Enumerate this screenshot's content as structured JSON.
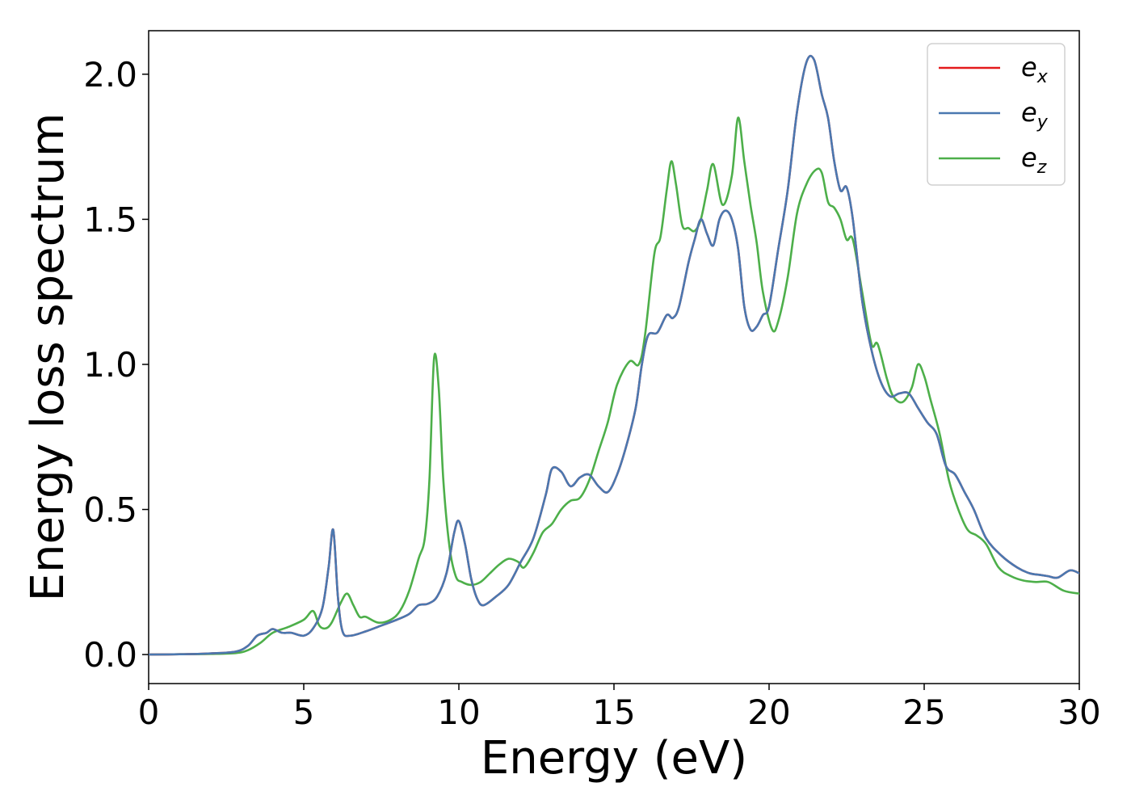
{
  "chart_data": {
    "type": "line",
    "title": "",
    "xlabel": "Energy (eV)",
    "ylabel": "Energy loss spectrum",
    "xlim": [
      0,
      30
    ],
    "ylim": [
      -0.1,
      2.15
    ],
    "xticks": [
      0,
      5,
      10,
      15,
      20,
      25,
      30
    ],
    "yticks": [
      0.0,
      0.5,
      1.0,
      1.5,
      2.0
    ],
    "xtick_labels": [
      "0",
      "5",
      "10",
      "15",
      "20",
      "25",
      "30"
    ],
    "ytick_labels": [
      "0.0",
      "0.5",
      "1.0",
      "1.5",
      "2.0"
    ],
    "grid": false,
    "legend_position": "top-right",
    "series": [
      {
        "name": "e_x",
        "label_base": "e",
        "label_sub": "x",
        "color": "#e41a1c",
        "x": [
          0,
          1,
          2,
          2.8,
          3.2,
          3.5,
          3.8,
          4.0,
          4.3,
          4.6,
          5.0,
          5.3,
          5.6,
          5.8,
          5.95,
          6.1,
          6.25,
          6.5,
          7.0,
          7.5,
          8.0,
          8.4,
          8.7,
          9.0,
          9.3,
          9.6,
          9.85,
          10.0,
          10.2,
          10.4,
          10.6,
          10.8,
          11.2,
          11.6,
          12.0,
          12.4,
          12.8,
          13.0,
          13.3,
          13.6,
          13.9,
          14.2,
          14.5,
          14.8,
          15.1,
          15.4,
          15.7,
          15.9,
          16.1,
          16.4,
          16.7,
          16.9,
          17.1,
          17.4,
          17.6,
          17.8,
          18.0,
          18.2,
          18.4,
          18.6,
          18.8,
          19.0,
          19.2,
          19.4,
          19.6,
          19.8,
          20.0,
          20.3,
          20.6,
          20.9,
          21.2,
          21.45,
          21.7,
          21.9,
          22.1,
          22.3,
          22.5,
          22.7,
          23.0,
          23.3,
          23.6,
          23.9,
          24.2,
          24.5,
          24.8,
          25.1,
          25.4,
          25.7,
          26.0,
          26.3,
          26.6,
          27.0,
          27.5,
          28.0,
          28.4,
          28.7,
          29.0,
          29.3,
          29.7,
          30
        ],
        "y": [
          0,
          0.001,
          0.004,
          0.01,
          0.03,
          0.065,
          0.075,
          0.088,
          0.075,
          0.075,
          0.065,
          0.09,
          0.16,
          0.3,
          0.43,
          0.2,
          0.08,
          0.065,
          0.08,
          0.1,
          0.12,
          0.14,
          0.17,
          0.175,
          0.2,
          0.28,
          0.42,
          0.46,
          0.38,
          0.26,
          0.19,
          0.17,
          0.2,
          0.24,
          0.32,
          0.4,
          0.55,
          0.64,
          0.63,
          0.58,
          0.61,
          0.62,
          0.58,
          0.56,
          0.62,
          0.72,
          0.85,
          1.0,
          1.1,
          1.11,
          1.17,
          1.16,
          1.2,
          1.35,
          1.43,
          1.5,
          1.45,
          1.41,
          1.5,
          1.53,
          1.5,
          1.4,
          1.2,
          1.12,
          1.13,
          1.17,
          1.2,
          1.4,
          1.6,
          1.87,
          2.04,
          2.05,
          1.93,
          1.85,
          1.7,
          1.6,
          1.61,
          1.5,
          1.22,
          1.05,
          0.94,
          0.89,
          0.9,
          0.9,
          0.85,
          0.8,
          0.76,
          0.65,
          0.62,
          0.56,
          0.5,
          0.4,
          0.34,
          0.3,
          0.28,
          0.275,
          0.27,
          0.265,
          0.29,
          0.28
        ]
      },
      {
        "name": "e_y",
        "label_base": "e",
        "label_sub": "y",
        "color": "#4a78b0",
        "x": [
          0,
          1,
          2,
          2.8,
          3.2,
          3.5,
          3.8,
          4.0,
          4.3,
          4.6,
          5.0,
          5.3,
          5.6,
          5.8,
          5.95,
          6.1,
          6.25,
          6.5,
          7.0,
          7.5,
          8.0,
          8.4,
          8.7,
          9.0,
          9.3,
          9.6,
          9.85,
          10.0,
          10.2,
          10.4,
          10.6,
          10.8,
          11.2,
          11.6,
          12.0,
          12.4,
          12.8,
          13.0,
          13.3,
          13.6,
          13.9,
          14.2,
          14.5,
          14.8,
          15.1,
          15.4,
          15.7,
          15.9,
          16.1,
          16.4,
          16.7,
          16.9,
          17.1,
          17.4,
          17.6,
          17.8,
          18.0,
          18.2,
          18.4,
          18.6,
          18.8,
          19.0,
          19.2,
          19.4,
          19.6,
          19.8,
          20.0,
          20.3,
          20.6,
          20.9,
          21.2,
          21.45,
          21.7,
          21.9,
          22.1,
          22.3,
          22.5,
          22.7,
          23.0,
          23.3,
          23.6,
          23.9,
          24.2,
          24.5,
          24.8,
          25.1,
          25.4,
          25.7,
          26.0,
          26.3,
          26.6,
          27.0,
          27.5,
          28.0,
          28.4,
          28.7,
          29.0,
          29.3,
          29.7,
          30
        ],
        "y": [
          0,
          0.001,
          0.004,
          0.01,
          0.03,
          0.065,
          0.075,
          0.088,
          0.075,
          0.075,
          0.065,
          0.09,
          0.16,
          0.3,
          0.43,
          0.2,
          0.08,
          0.065,
          0.08,
          0.1,
          0.12,
          0.14,
          0.17,
          0.175,
          0.2,
          0.28,
          0.42,
          0.46,
          0.38,
          0.26,
          0.19,
          0.17,
          0.2,
          0.24,
          0.32,
          0.4,
          0.55,
          0.64,
          0.63,
          0.58,
          0.61,
          0.62,
          0.58,
          0.56,
          0.62,
          0.72,
          0.85,
          1.0,
          1.1,
          1.11,
          1.17,
          1.16,
          1.2,
          1.35,
          1.43,
          1.5,
          1.45,
          1.41,
          1.5,
          1.53,
          1.5,
          1.4,
          1.2,
          1.12,
          1.13,
          1.17,
          1.2,
          1.4,
          1.6,
          1.87,
          2.04,
          2.05,
          1.93,
          1.85,
          1.7,
          1.6,
          1.61,
          1.5,
          1.22,
          1.05,
          0.94,
          0.89,
          0.9,
          0.9,
          0.85,
          0.8,
          0.76,
          0.65,
          0.62,
          0.56,
          0.5,
          0.4,
          0.34,
          0.3,
          0.28,
          0.275,
          0.27,
          0.265,
          0.29,
          0.28
        ]
      },
      {
        "name": "e_z",
        "label_base": "e",
        "label_sub": "z",
        "color": "#4daf4a",
        "x": [
          0,
          1,
          2,
          2.8,
          3.2,
          3.6,
          4.0,
          4.5,
          5.0,
          5.3,
          5.5,
          5.7,
          5.9,
          6.2,
          6.4,
          6.6,
          6.8,
          7.0,
          7.4,
          7.8,
          8.1,
          8.4,
          8.7,
          8.9,
          9.05,
          9.2,
          9.35,
          9.5,
          9.7,
          9.9,
          10.1,
          10.4,
          10.7,
          11.0,
          11.3,
          11.6,
          11.9,
          12.1,
          12.4,
          12.7,
          13.0,
          13.3,
          13.6,
          13.9,
          14.2,
          14.5,
          14.8,
          15.1,
          15.5,
          15.8,
          16.0,
          16.3,
          16.5,
          16.7,
          16.85,
          17.0,
          17.2,
          17.4,
          17.6,
          17.8,
          18.0,
          18.2,
          18.5,
          18.8,
          19.0,
          19.2,
          19.4,
          19.6,
          19.8,
          20.1,
          20.3,
          20.6,
          20.9,
          21.2,
          21.5,
          21.7,
          21.9,
          22.1,
          22.3,
          22.5,
          22.7,
          23.0,
          23.3,
          23.5,
          23.8,
          24.0,
          24.3,
          24.6,
          24.8,
          25.0,
          25.2,
          25.5,
          25.8,
          26.1,
          26.4,
          26.7,
          27.0,
          27.4,
          27.8,
          28.2,
          28.6,
          29.0,
          29.5,
          30
        ],
        "y": [
          0,
          0.001,
          0.002,
          0.005,
          0.015,
          0.04,
          0.075,
          0.095,
          0.12,
          0.15,
          0.1,
          0.09,
          0.11,
          0.18,
          0.21,
          0.17,
          0.13,
          0.13,
          0.11,
          0.12,
          0.15,
          0.22,
          0.33,
          0.4,
          0.6,
          1.02,
          0.92,
          0.6,
          0.37,
          0.27,
          0.25,
          0.24,
          0.25,
          0.28,
          0.31,
          0.33,
          0.32,
          0.3,
          0.35,
          0.42,
          0.45,
          0.5,
          0.53,
          0.54,
          0.6,
          0.7,
          0.8,
          0.93,
          1.01,
          1.0,
          1.1,
          1.38,
          1.44,
          1.6,
          1.7,
          1.62,
          1.48,
          1.47,
          1.46,
          1.5,
          1.6,
          1.69,
          1.55,
          1.65,
          1.85,
          1.7,
          1.55,
          1.42,
          1.25,
          1.12,
          1.15,
          1.3,
          1.52,
          1.62,
          1.67,
          1.66,
          1.56,
          1.54,
          1.5,
          1.43,
          1.43,
          1.25,
          1.07,
          1.07,
          0.95,
          0.89,
          0.87,
          0.92,
          1.0,
          0.96,
          0.88,
          0.76,
          0.6,
          0.5,
          0.43,
          0.41,
          0.38,
          0.3,
          0.27,
          0.255,
          0.25,
          0.25,
          0.22,
          0.21
        ]
      }
    ]
  }
}
